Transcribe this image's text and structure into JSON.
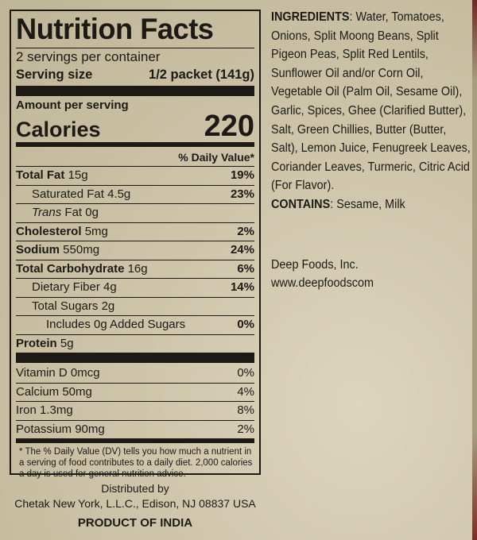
{
  "label": {
    "title": "Nutrition Facts",
    "servings": "2 servings per container",
    "serving_size_label": "Serving size",
    "serving_size_value": "1/2 packet (141g)",
    "amount_per_serving": "Amount per serving",
    "calories_label": "Calories",
    "calories_value": "220",
    "dv_header": "% Daily Value*",
    "nutrients": [
      {
        "name": "Total Fat",
        "amount": "15g",
        "dv": "19%"
      },
      {
        "name": "Saturated Fat",
        "amount": "4.5g",
        "dv": "23%"
      },
      {
        "name": "Trans",
        "amount": "Fat 0g",
        "dv": ""
      },
      {
        "name": "Cholesterol",
        "amount": "5mg",
        "dv": "2%"
      },
      {
        "name": "Sodium",
        "amount": "550mg",
        "dv": "24%"
      },
      {
        "name": "Total Carbohydrate",
        "amount": "16g",
        "dv": "6%"
      },
      {
        "name": "Dietary Fiber",
        "amount": "4g",
        "dv": "14%"
      },
      {
        "name": "Total Sugars",
        "amount": "2g",
        "dv": ""
      },
      {
        "name": "Includes 0g Added Sugars",
        "amount": "",
        "dv": "0%"
      },
      {
        "name": "Protein",
        "amount": "5g",
        "dv": ""
      }
    ],
    "vitamins": [
      {
        "name": "Vitamin D 0mcg",
        "dv": "0%"
      },
      {
        "name": "Calcium 50mg",
        "dv": "4%"
      },
      {
        "name": "Iron 1.3mg",
        "dv": "8%"
      },
      {
        "name": "Potassium 90mg",
        "dv": "2%"
      }
    ],
    "footnote": "* The % Daily Value (DV) tells you how much a nutrient in a serving of food contributes to a daily diet. 2,000 calories a day is used for general nutrition advice."
  },
  "distributor": {
    "line1": "Distributed by",
    "line2": "Chetak New York, L.L.C., Edison, NJ  08837  USA",
    "origin": "PRODUCT OF INDIA"
  },
  "ingredients": {
    "label": "INGREDIENTS",
    "text": ": Water, Tomatoes, Onions, Split Moong Beans, Split Pigeon Peas, Split Red Lentils, Sunflower Oil and/or Corn Oil, Vegetable Oil (Palm Oil, Sesame Oil), Garlic, Spices, Ghee (Clarified Butter), Salt, Green Chillies, Butter (Butter, Salt), Lemon Juice, Fenugreek Leaves, Coriander Leaves, Turmeric, Citric Acid (For Flavor).",
    "contains_label": "CONTAINS",
    "contains_text": ": Sesame, Milk"
  },
  "company": {
    "name": "Deep Foods, Inc.",
    "website": "www.deepfoodscom"
  }
}
